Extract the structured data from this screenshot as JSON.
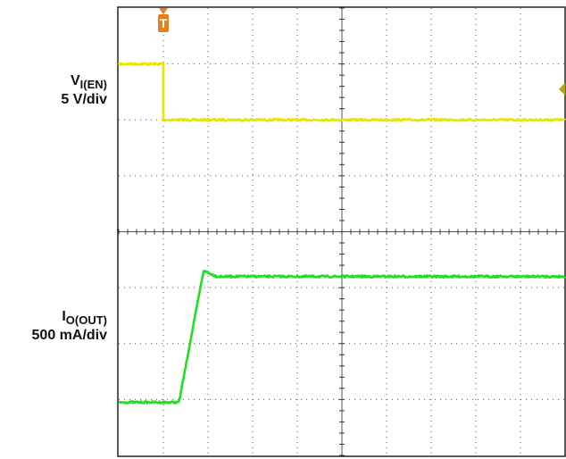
{
  "chart_data": {
    "type": "line",
    "title": "",
    "grid": true,
    "divisions": {
      "horizontal": 10,
      "vertical": 8
    },
    "series": [
      {
        "name": "V_I(EN)",
        "scale": "5 V/div",
        "color": "#e8e600",
        "unit_div": "div",
        "points": [
          [
            0.0,
            1.0
          ],
          [
            1.0,
            1.0
          ],
          [
            1.0,
            0.0
          ],
          [
            10.0,
            0.0
          ]
        ]
      },
      {
        "name": "I_O(OUT)",
        "scale": "500 mA/div",
        "color": "#22dd22",
        "unit_div": "div",
        "points": [
          [
            0.0,
            0.0
          ],
          [
            1.35,
            0.0
          ],
          [
            1.9,
            2.35
          ],
          [
            2.2,
            2.25
          ],
          [
            10.0,
            2.25
          ]
        ]
      }
    ]
  },
  "channels": [
    {
      "symbol": "V",
      "subscript": "I(EN)",
      "scale": "5 V/div"
    },
    {
      "symbol": "I",
      "subscript": "O(OUT)",
      "scale": "500 mA/div"
    }
  ],
  "markers": {
    "trigger": "T",
    "trigger_color": "#e87f1a",
    "ch1_level_color": "#b5a600"
  }
}
